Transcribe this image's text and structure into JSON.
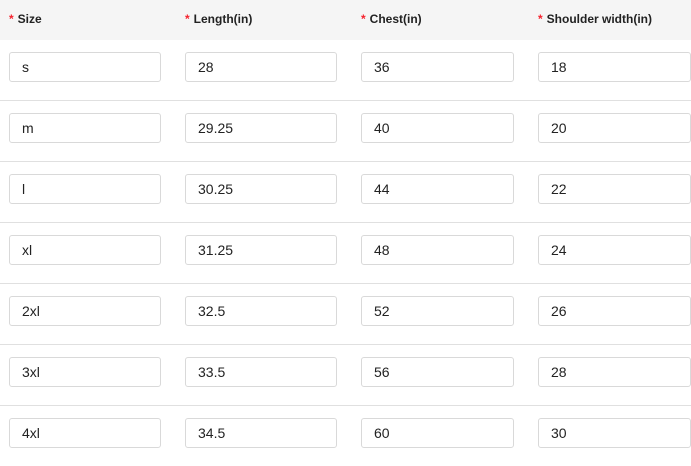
{
  "columns": [
    "Size",
    "Length(in)",
    "Chest(in)",
    "Shoulder width(in)"
  ],
  "required_mark": "*",
  "rows": [
    [
      "s",
      "28",
      "36",
      "18"
    ],
    [
      "m",
      "29.25",
      "40",
      "20"
    ],
    [
      "l",
      "30.25",
      "44",
      "22"
    ],
    [
      "xl",
      "31.25",
      "48",
      "24"
    ],
    [
      "2xl",
      "32.5",
      "52",
      "26"
    ],
    [
      "3xl",
      "33.5",
      "56",
      "28"
    ],
    [
      "4xl",
      "34.5",
      "60",
      "30"
    ]
  ]
}
